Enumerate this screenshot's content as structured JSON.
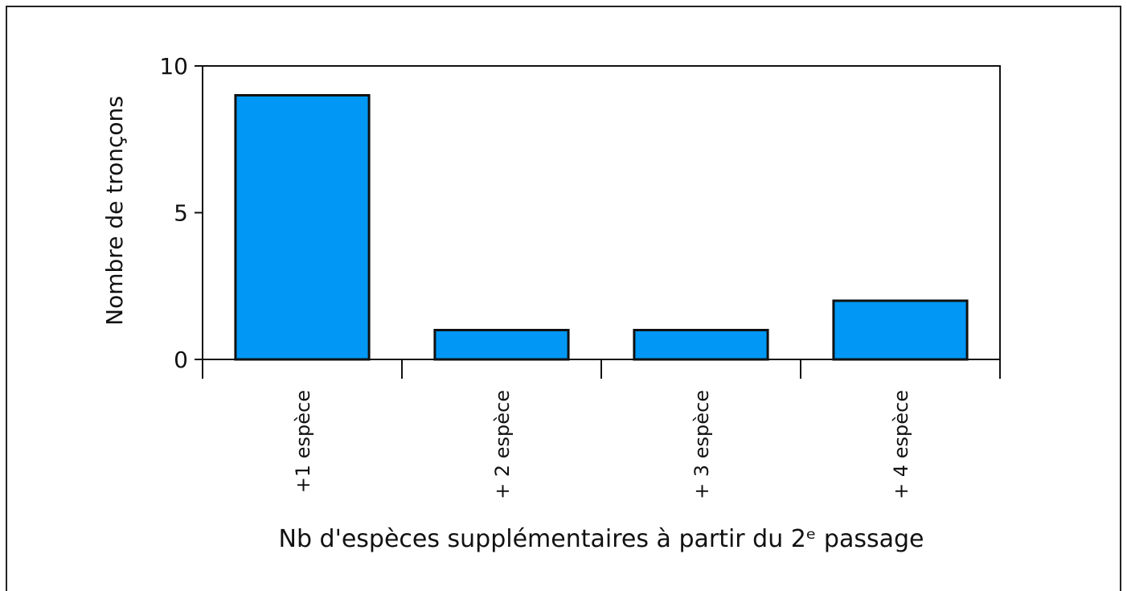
{
  "chart_data": {
    "type": "bar",
    "categories": [
      "+1 espèce",
      "+ 2 espèce",
      "+ 3 espèce",
      "+ 4 espèce"
    ],
    "values": [
      9,
      1,
      1,
      2
    ],
    "color": "#0098f4",
    "ylim": [
      0,
      10
    ],
    "yticks": [
      0,
      5,
      10
    ],
    "ylabel": "Nombre de tronçons",
    "xlabel": "Nb d'espèces supplémentaires à partir du 2ᵉ passage"
  }
}
